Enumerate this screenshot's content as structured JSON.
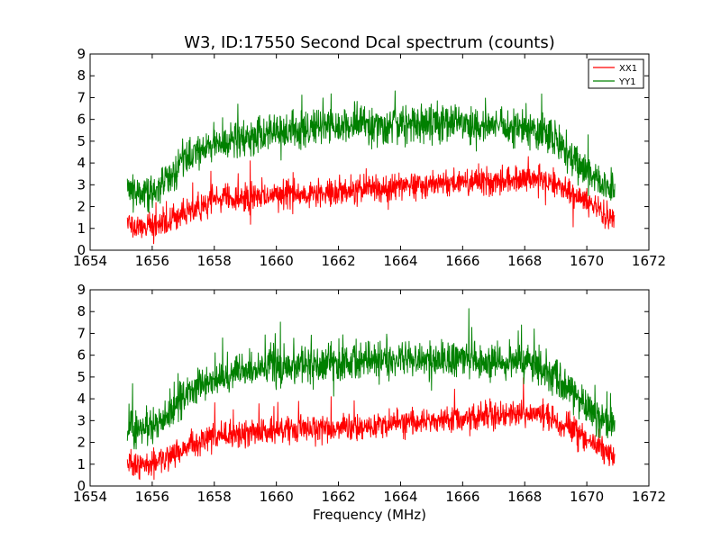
{
  "chart_data": [
    {
      "type": "line",
      "title": "W3, ID:17550 Second Dcal spectrum (counts)",
      "xlabel": "",
      "ylabel": "",
      "xlim": [
        1654,
        1672
      ],
      "ylim": [
        0,
        9
      ],
      "xticks": [
        "1654",
        "1656",
        "1658",
        "1660",
        "1662",
        "1664",
        "1666",
        "1668",
        "1670",
        "1672"
      ],
      "yticks": [
        "0",
        "1",
        "2",
        "3",
        "4",
        "5",
        "6",
        "7",
        "8",
        "9"
      ],
      "x_range": [
        1655.2,
        1670.9
      ],
      "grid": false,
      "legend": "top-right",
      "series": [
        {
          "name": "XX1",
          "color": "#ff0000",
          "envelope": {
            "x": [
              1655.2,
              1655.5,
              1656.0,
              1656.5,
              1657.0,
              1657.5,
              1658.0,
              1659.0,
              1660.0,
              1661.0,
              1662.0,
              1663.0,
              1664.0,
              1665.0,
              1666.0,
              1667.0,
              1668.0,
              1668.5,
              1669.0,
              1669.5,
              1670.0,
              1670.5,
              1670.9
            ],
            "y": [
              1.2,
              1.0,
              1.0,
              1.3,
              1.7,
              2.0,
              2.3,
              2.4,
              2.5,
              2.6,
              2.7,
              2.8,
              2.9,
              3.0,
              3.1,
              3.2,
              3.3,
              3.3,
              3.0,
              2.6,
              2.2,
              1.7,
              1.3
            ]
          },
          "noise": 0.55
        },
        {
          "name": "YY1",
          "color": "#008000",
          "envelope": {
            "x": [
              1655.2,
              1655.5,
              1656.0,
              1656.5,
              1657.0,
              1657.5,
              1658.0,
              1659.0,
              1660.0,
              1661.0,
              1662.0,
              1663.0,
              1664.0,
              1665.0,
              1666.0,
              1667.0,
              1668.0,
              1668.5,
              1669.0,
              1669.5,
              1670.0,
              1670.5,
              1670.9
            ],
            "y": [
              2.8,
              2.5,
              2.7,
              3.3,
              4.2,
              4.6,
              4.9,
              5.2,
              5.5,
              5.6,
              5.7,
              5.8,
              5.8,
              5.8,
              5.8,
              5.7,
              5.6,
              5.5,
              5.0,
              4.4,
              3.6,
              3.0,
              2.8
            ]
          },
          "noise": 0.75
        }
      ]
    },
    {
      "type": "line",
      "title": "",
      "xlabel": "Frequency (MHz)",
      "ylabel": "",
      "xlim": [
        1654,
        1672
      ],
      "ylim": [
        0,
        9
      ],
      "xticks": [
        "1654",
        "1656",
        "1658",
        "1660",
        "1662",
        "1664",
        "1666",
        "1668",
        "1670",
        "1672"
      ],
      "yticks": [
        "0",
        "1",
        "2",
        "3",
        "4",
        "5",
        "6",
        "7",
        "8",
        "9"
      ],
      "x_range": [
        1655.2,
        1670.9
      ],
      "grid": false,
      "series": [
        {
          "color": "#ff0000",
          "envelope": {
            "x": [
              1655.2,
              1655.5,
              1656.0,
              1656.5,
              1657.0,
              1657.5,
              1658.0,
              1659.0,
              1660.0,
              1661.0,
              1662.0,
              1663.0,
              1664.0,
              1665.0,
              1666.0,
              1667.0,
              1668.0,
              1668.5,
              1669.0,
              1669.5,
              1670.0,
              1670.5,
              1670.9
            ],
            "y": [
              1.2,
              1.0,
              1.0,
              1.3,
              1.7,
              2.0,
              2.3,
              2.4,
              2.5,
              2.6,
              2.7,
              2.8,
              2.9,
              3.0,
              3.1,
              3.2,
              3.3,
              3.3,
              3.0,
              2.6,
              2.2,
              1.7,
              1.3
            ]
          },
          "noise": 0.55
        },
        {
          "color": "#008000",
          "envelope": {
            "x": [
              1655.2,
              1655.5,
              1656.0,
              1656.5,
              1657.0,
              1657.5,
              1658.0,
              1659.0,
              1660.0,
              1661.0,
              1662.0,
              1663.0,
              1664.0,
              1665.0,
              1666.0,
              1667.0,
              1668.0,
              1668.5,
              1669.0,
              1669.5,
              1670.0,
              1670.5,
              1670.9
            ],
            "y": [
              2.8,
              2.5,
              2.7,
              3.3,
              4.2,
              4.6,
              4.9,
              5.2,
              5.5,
              5.6,
              5.7,
              5.8,
              5.8,
              5.8,
              5.8,
              5.7,
              5.6,
              5.5,
              5.0,
              4.4,
              3.6,
              3.0,
              2.8
            ]
          },
          "noise": 0.75
        }
      ]
    }
  ]
}
